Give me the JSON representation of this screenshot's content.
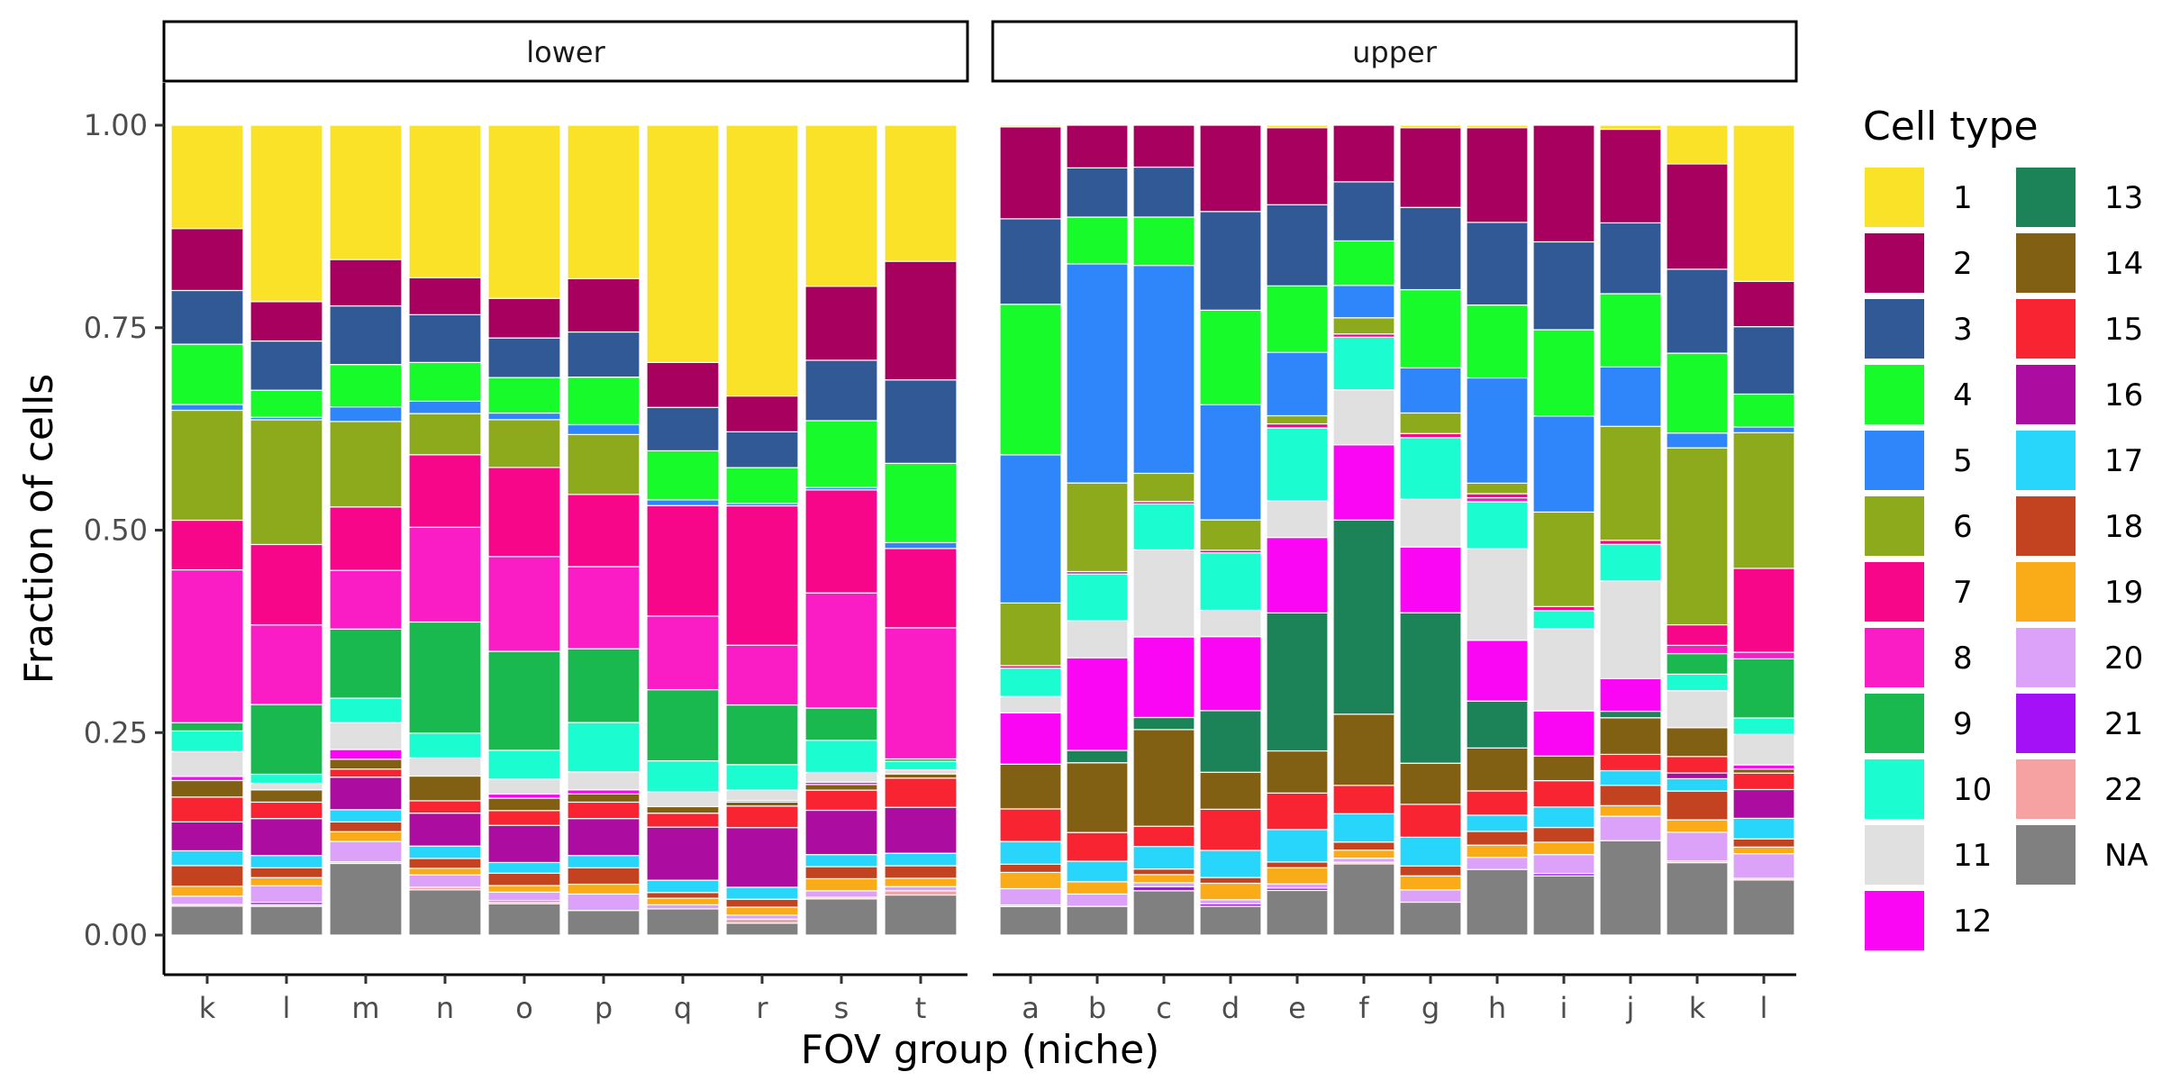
{
  "chart_data": {
    "type": "bar",
    "stacked": true,
    "xlabel": "FOV group (niche)",
    "ylabel": "Fraction of cells",
    "ylim": [
      0,
      1
    ],
    "yticks": [
      "0.00",
      "0.25",
      "0.50",
      "0.75",
      "1.00"
    ],
    "ytick_values": [
      0,
      0.25,
      0.5,
      0.75,
      1.0
    ],
    "legend": {
      "title": "Cell type",
      "placement": "right",
      "entries": [
        {
          "label": "1",
          "color": "#F9E228"
        },
        {
          "label": "2",
          "color": "#A8005E"
        },
        {
          "label": "3",
          "color": "#315996"
        },
        {
          "label": "4",
          "color": "#18FB2B"
        },
        {
          "label": "5",
          "color": "#2F86FA"
        },
        {
          "label": "6",
          "color": "#8CAA1C"
        },
        {
          "label": "7",
          "color": "#F8068A"
        },
        {
          "label": "8",
          "color": "#FA1DC6"
        },
        {
          "label": "9",
          "color": "#1AB950"
        },
        {
          "label": "10",
          "color": "#1BFDD1"
        },
        {
          "label": "11",
          "color": "#E0E0E0"
        },
        {
          "label": "12",
          "color": "#FA06F5"
        },
        {
          "label": "13",
          "color": "#1C8258"
        },
        {
          "label": "14",
          "color": "#826013"
        },
        {
          "label": "15",
          "color": "#F82432"
        },
        {
          "label": "16",
          "color": "#AD0CA1"
        },
        {
          "label": "17",
          "color": "#29D6FB"
        },
        {
          "label": "18",
          "color": "#C3421F"
        },
        {
          "label": "19",
          "color": "#FAAB18"
        },
        {
          "label": "20",
          "color": "#DCA1F8"
        },
        {
          "label": "21",
          "color": "#A411F7"
        },
        {
          "label": "22",
          "color": "#F6A2A2"
        },
        {
          "label": "NA",
          "color": "#808080"
        }
      ]
    },
    "panels": [
      {
        "name": "lower",
        "bars": [
          {
            "category": "k",
            "values": [
              0.125,
              0.075,
              0.065,
              0.073,
              0.007,
              0.133,
              0.06,
              0.185,
              0.01,
              0.025,
              0.03,
              0.005,
              0.0,
              0.02,
              0.03,
              0.035,
              0.018,
              0.025,
              0.012,
              0.01,
              0.0,
              0.002,
              0.035
            ]
          },
          {
            "category": "l",
            "values": [
              0.215,
              0.048,
              0.06,
              0.033,
              0.003,
              0.152,
              0.098,
              0.097,
              0.085,
              0.011,
              0.008,
              0.0,
              0.0,
              0.015,
              0.02,
              0.045,
              0.015,
              0.012,
              0.01,
              0.02,
              0.003,
              0.002,
              0.035
            ]
          },
          {
            "category": "m",
            "values": [
              0.165,
              0.057,
              0.072,
              0.052,
              0.018,
              0.105,
              0.078,
              0.072,
              0.085,
              0.03,
              0.033,
              0.012,
              0.0,
              0.012,
              0.01,
              0.04,
              0.015,
              0.012,
              0.012,
              0.025,
              0.0,
              0.002,
              0.088
            ]
          },
          {
            "category": "n",
            "values": [
              0.185,
              0.045,
              0.058,
              0.047,
              0.015,
              0.05,
              0.088,
              0.115,
              0.135,
              0.03,
              0.022,
              0.0,
              0.0,
              0.03,
              0.015,
              0.04,
              0.015,
              0.012,
              0.008,
              0.015,
              0.0,
              0.003,
              0.055
            ]
          },
          {
            "category": "o",
            "values": [
              0.21,
              0.048,
              0.048,
              0.043,
              0.008,
              0.058,
              0.108,
              0.115,
              0.12,
              0.035,
              0.018,
              0.005,
              0.0,
              0.015,
              0.018,
              0.045,
              0.013,
              0.015,
              0.008,
              0.01,
              0.002,
              0.002,
              0.038
            ]
          },
          {
            "category": "p",
            "values": [
              0.187,
              0.065,
              0.055,
              0.058,
              0.012,
              0.073,
              0.088,
              0.1,
              0.09,
              0.06,
              0.022,
              0.005,
              0.0,
              0.01,
              0.02,
              0.045,
              0.015,
              0.02,
              0.012,
              0.02,
              0.0,
              0.0,
              0.03
            ]
          },
          {
            "category": "q",
            "values": [
              0.29,
              0.055,
              0.053,
              0.06,
              0.007,
              0.0,
              0.135,
              0.09,
              0.087,
              0.038,
              0.018,
              0.0,
              0.0,
              0.008,
              0.017,
              0.065,
              0.015,
              0.007,
              0.008,
              0.005,
              0.0,
              0.0,
              0.032
            ]
          },
          {
            "category": "r",
            "values": [
              0.34,
              0.045,
              0.045,
              0.045,
              0.003,
              0.0,
              0.175,
              0.075,
              0.075,
              0.032,
              0.013,
              0.002,
              0.0,
              0.005,
              0.027,
              0.075,
              0.015,
              0.01,
              0.01,
              0.005,
              0.0,
              0.005,
              0.015
            ]
          },
          {
            "category": "s",
            "values": [
              0.2,
              0.092,
              0.075,
              0.083,
              0.003,
              0.0,
              0.128,
              0.143,
              0.04,
              0.04,
              0.012,
              0.003,
              0.0,
              0.007,
              0.025,
              0.055,
              0.015,
              0.015,
              0.015,
              0.008,
              0.0,
              0.002,
              0.045
            ]
          },
          {
            "category": "t",
            "values": [
              0.163,
              0.142,
              0.1,
              0.095,
              0.007,
              0.0,
              0.095,
              0.157,
              0.003,
              0.01,
              0.005,
              0.0,
              0.0,
              0.005,
              0.035,
              0.055,
              0.015,
              0.015,
              0.01,
              0.005,
              0.0,
              0.005,
              0.048
            ]
          }
        ]
      },
      {
        "name": "upper",
        "bars": [
          {
            "category": "a",
            "values": [
              0.002,
              0.113,
              0.105,
              0.185,
              0.182,
              0.077,
              0.003,
              0.0,
              0.0,
              0.035,
              0.02,
              0.063,
              0.0,
              0.055,
              0.04,
              0.0,
              0.028,
              0.01,
              0.02,
              0.02,
              0.0,
              0.002,
              0.035
            ]
          },
          {
            "category": "b",
            "values": [
              0.0,
              0.052,
              0.06,
              0.057,
              0.267,
              0.108,
              0.003,
              0.0,
              0.0,
              0.057,
              0.045,
              0.113,
              0.015,
              0.085,
              0.035,
              0.0,
              0.025,
              0.0,
              0.015,
              0.015,
              0.0,
              0.0,
              0.035
            ]
          },
          {
            "category": "c",
            "values": [
              0.0,
              0.052,
              0.062,
              0.06,
              0.258,
              0.035,
              0.003,
              0.0,
              0.0,
              0.057,
              0.108,
              0.1,
              0.015,
              0.12,
              0.025,
              0.0,
              0.028,
              0.007,
              0.01,
              0.005,
              0.005,
              0.0,
              0.055
            ]
          },
          {
            "category": "d",
            "values": [
              0.0,
              0.105,
              0.12,
              0.115,
              0.14,
              0.037,
              0.003,
              0.0,
              0.0,
              0.07,
              0.032,
              0.09,
              0.075,
              0.045,
              0.05,
              0.0,
              0.033,
              0.007,
              0.02,
              0.005,
              0.003,
              0.0,
              0.035
            ]
          },
          {
            "category": "e",
            "values": [
              0.003,
              0.095,
              0.1,
              0.082,
              0.078,
              0.01,
              0.005,
              0.0,
              0.0,
              0.09,
              0.045,
              0.093,
              0.17,
              0.052,
              0.045,
              0.0,
              0.04,
              0.007,
              0.02,
              0.005,
              0.003,
              0.0,
              0.055
            ]
          },
          {
            "category": "f",
            "values": [
              0.0,
              0.07,
              0.073,
              0.055,
              0.04,
              0.02,
              0.004,
              0.0,
              0.0,
              0.065,
              0.068,
              0.093,
              0.24,
              0.088,
              0.035,
              0.0,
              0.035,
              0.01,
              0.01,
              0.005,
              0.0,
              0.002,
              0.088
            ]
          },
          {
            "category": "g",
            "values": [
              0.003,
              0.097,
              0.1,
              0.095,
              0.055,
              0.025,
              0.005,
              0.0,
              0.0,
              0.075,
              0.058,
              0.08,
              0.183,
              0.05,
              0.04,
              0.0,
              0.035,
              0.012,
              0.017,
              0.015,
              0.0,
              0.0,
              0.04
            ]
          },
          {
            "category": "h",
            "values": [
              0.003,
              0.117,
              0.102,
              0.09,
              0.13,
              0.013,
              0.005,
              0.005,
              0.0,
              0.058,
              0.113,
              0.075,
              0.058,
              0.053,
              0.03,
              0.0,
              0.02,
              0.017,
              0.015,
              0.015,
              0.0,
              0.0,
              0.081
            ]
          },
          {
            "category": "i",
            "values": [
              0.0,
              0.142,
              0.107,
              0.105,
              0.117,
              0.115,
              0.005,
              0.0,
              0.0,
              0.022,
              0.1,
              0.055,
              0.0,
              0.03,
              0.032,
              0.0,
              0.025,
              0.018,
              0.015,
              0.023,
              0.003,
              0.0,
              0.072
            ]
          },
          {
            "category": "j",
            "values": [
              0.005,
              0.115,
              0.087,
              0.09,
              0.073,
              0.14,
              0.005,
              0.0,
              0.0,
              0.045,
              0.12,
              0.04,
              0.008,
              0.045,
              0.02,
              0.0,
              0.018,
              0.025,
              0.013,
              0.03,
              0.0,
              0.0,
              0.116
            ]
          },
          {
            "category": "k",
            "values": [
              0.047,
              0.128,
              0.102,
              0.097,
              0.018,
              0.215,
              0.025,
              0.01,
              0.025,
              0.02,
              0.045,
              0.0,
              0.0,
              0.035,
              0.02,
              0.007,
              0.015,
              0.035,
              0.015,
              0.035,
              0.0,
              0.002,
              0.088
            ]
          },
          {
            "category": "l",
            "values": [
              0.19,
              0.055,
              0.082,
              0.04,
              0.007,
              0.165,
              0.102,
              0.008,
              0.072,
              0.02,
              0.037,
              0.005,
              0.0,
              0.005,
              0.02,
              0.035,
              0.025,
              0.01,
              0.008,
              0.03,
              0.0,
              0.002,
              0.067
            ]
          }
        ]
      }
    ]
  }
}
